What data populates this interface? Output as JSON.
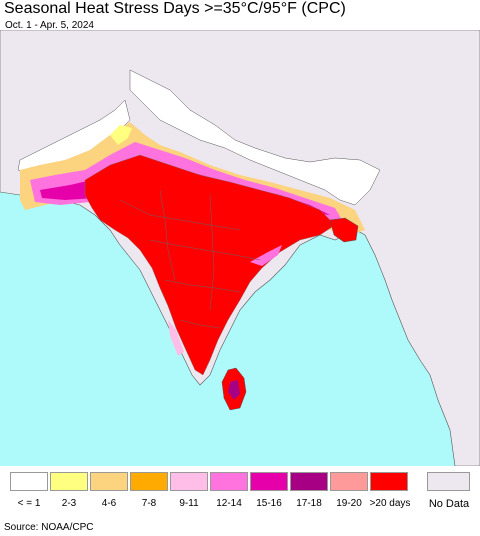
{
  "title": "Seasonal Heat Stress Days >=35°C/95°F (CPC)",
  "subtitle": "Oct. 1 - Apr. 5, 2024",
  "source": "Source: NOAA/CPC",
  "colors": {
    "ocean": "#aefafa",
    "land_nodata": "#ede8ef",
    "border": "#555555"
  },
  "legend": {
    "bins": [
      {
        "label": "< = 1",
        "color": "#ffffff"
      },
      {
        "label": "2-3",
        "color": "#ffff80"
      },
      {
        "label": "4-6",
        "color": "#fcd37f"
      },
      {
        "label": "7-8",
        "color": "#ffaa00"
      },
      {
        "label": "9-11",
        "color": "#ffbee8"
      },
      {
        "label": "12-14",
        "color": "#ff73df"
      },
      {
        "label": "15-16",
        "color": "#e600a9"
      },
      {
        "label": "17-18",
        "color": "#a80084"
      },
      {
        "label": "19-20",
        "color": "#ff9a9a"
      },
      {
        "label": ">20 days",
        "color": "#ff0000"
      }
    ],
    "nodata": {
      "label": "No Data",
      "color": "#ede8ef"
    }
  }
}
